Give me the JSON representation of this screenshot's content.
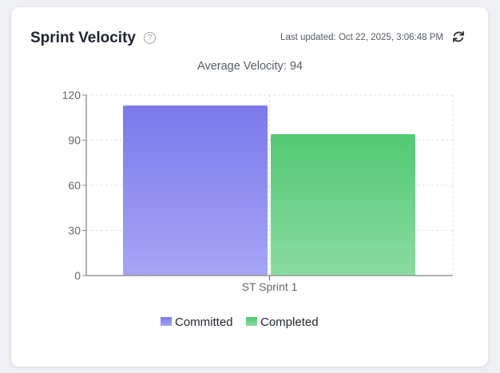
{
  "header": {
    "title": "Sprint Velocity",
    "last_updated": "Last updated: Oct 22, 2025, 3:06:48 PM",
    "help_icon": "question-circle-icon",
    "refresh_icon": "refresh-icon"
  },
  "chart_data": {
    "type": "bar",
    "title": "Average Velocity: 94",
    "categories": [
      "ST Sprint 1"
    ],
    "series": [
      {
        "name": "Committed",
        "values": [
          113
        ],
        "color": "#7b78ec"
      },
      {
        "name": "Completed",
        "values": [
          94
        ],
        "color": "#52c974"
      }
    ],
    "ylim": [
      0,
      120
    ],
    "yticks": [
      0,
      30,
      60,
      90,
      120
    ],
    "grid": true,
    "legend": "bottom"
  }
}
